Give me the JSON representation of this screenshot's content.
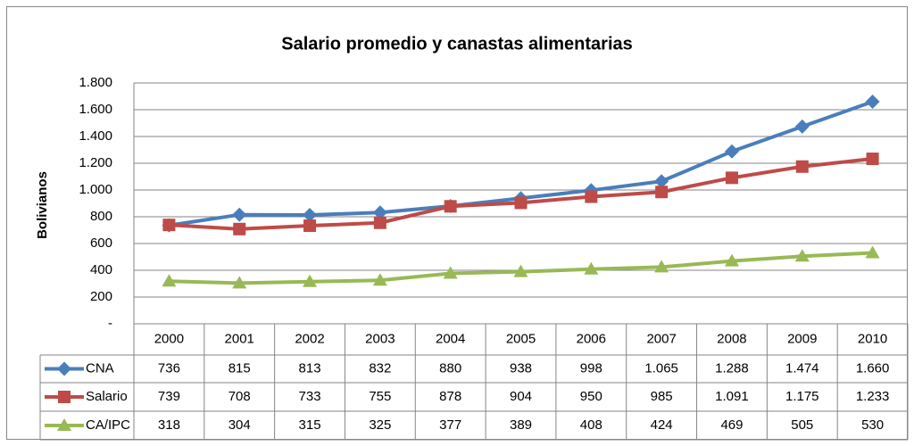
{
  "chart_data": {
    "type": "line",
    "title": "Salario promedio y canastas alimentarias",
    "y_label": "Bolivianos",
    "categories": [
      "2000",
      "2001",
      "2002",
      "2003",
      "2004",
      "2005",
      "2006",
      "2007",
      "2008",
      "2009",
      "2010"
    ],
    "series": [
      {
        "name": "CNA",
        "color": "#4a7ebb",
        "marker": "diamond",
        "values": [
          736,
          815,
          813,
          832,
          880,
          938,
          998,
          1065,
          1288,
          1474,
          1660
        ],
        "value_labels": [
          "736",
          "815",
          "813",
          "832",
          "880",
          "938",
          "998",
          "1.065",
          "1.288",
          "1.474",
          "1.660"
        ]
      },
      {
        "name": "Salario",
        "color": "#be4b48",
        "marker": "square",
        "values": [
          739,
          708,
          733,
          755,
          878,
          904,
          950,
          985,
          1091,
          1175,
          1233
        ],
        "value_labels": [
          "739",
          "708",
          "733",
          "755",
          "878",
          "904",
          "950",
          "985",
          "1.091",
          "1.175",
          "1.233"
        ]
      },
      {
        "name": "CA/IPC",
        "color": "#98b954",
        "marker": "triangle",
        "values": [
          318,
          304,
          315,
          325,
          377,
          389,
          408,
          424,
          469,
          505,
          530
        ],
        "value_labels": [
          "318",
          "304",
          "315",
          "325",
          "377",
          "389",
          "408",
          "424",
          "469",
          "505",
          "530"
        ]
      }
    ],
    "ylim": [
      0,
      1800
    ],
    "yticks": [
      {
        "value": 0,
        "label": "-"
      },
      200,
      400,
      600,
      800,
      {
        "value": 1000,
        "label": "1.000"
      },
      {
        "value": 1200,
        "label": "1.200"
      },
      {
        "value": 1400,
        "label": "1.400"
      },
      {
        "value": 1600,
        "label": "1.600"
      },
      {
        "value": 1800,
        "label": "1.800"
      }
    ],
    "grid": true
  }
}
